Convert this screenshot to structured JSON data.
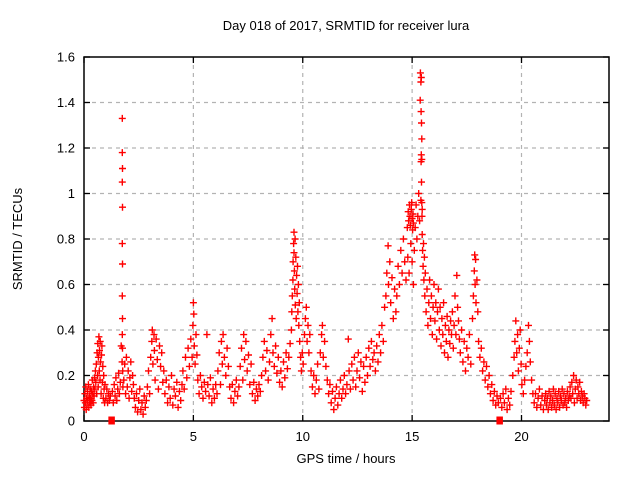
{
  "window": {
    "background": "#ffffff"
  },
  "chart_data": {
    "type": "scatter",
    "title": "Day 018 of 2017, SRMTID for receiver lura",
    "xlabel": "GPS time / hours",
    "ylabel": "SRMTID / TECUs",
    "xlim": [
      0,
      24
    ],
    "ylim": [
      0,
      1.6
    ],
    "xticks": [
      0,
      5,
      10,
      15,
      20
    ],
    "xtick_labels": [
      "0",
      "5",
      "10",
      "15",
      "20"
    ],
    "yticks": [
      0,
      0.2,
      0.4,
      0.6,
      0.8,
      1,
      1.2,
      1.4,
      1.6
    ],
    "ytick_labels": [
      "0",
      "0.2",
      "0.4",
      "0.6",
      "0.8",
      "1",
      "1.2",
      "1.4",
      "1.6"
    ],
    "grid": true,
    "grid_style": "dashed",
    "legend": "none",
    "marker": "plus-cross",
    "colors": {
      "points": "#ff0000",
      "grid": "#b3b3b3",
      "axis": "#000000",
      "background": "#ffffff",
      "text": "#000000"
    },
    "points_xy_flat": [
      0.0,
      0.09,
      0.02,
      0.06,
      0.04,
      0.12,
      0.06,
      0.08,
      0.08,
      0.15,
      0.1,
      0.05,
      0.12,
      0.1,
      0.14,
      0.07,
      0.16,
      0.13,
      0.18,
      0.09,
      0.2,
      0.16,
      0.22,
      0.06,
      0.24,
      0.11,
      0.26,
      0.08,
      0.28,
      0.14,
      0.3,
      0.1,
      0.32,
      0.07,
      0.34,
      0.13,
      0.36,
      0.09,
      0.38,
      0.18,
      0.4,
      0.12,
      0.42,
      0.08,
      0.44,
      0.15,
      0.46,
      0.11,
      0.48,
      0.19,
      0.5,
      0.14,
      0.52,
      0.22,
      0.54,
      0.17,
      0.56,
      0.25,
      0.58,
      0.12,
      0.6,
      0.3,
      0.62,
      0.2,
      0.63,
      0.34,
      0.65,
      0.15,
      0.66,
      0.28,
      0.68,
      0.37,
      0.7,
      0.22,
      0.71,
      0.31,
      0.73,
      0.18,
      0.74,
      0.35,
      0.76,
      0.26,
      0.78,
      0.12,
      0.8,
      0.29,
      0.82,
      0.33,
      0.84,
      0.17,
      0.86,
      0.24,
      0.88,
      0.1,
      0.9,
      0.2,
      0.92,
      0.14,
      0.94,
      0.08,
      0.96,
      0.16,
      1.0,
      0.1,
      1.04,
      0.14,
      1.08,
      0.08,
      1.12,
      0.12,
      1.16,
      0.09,
      1.2,
      0.11,
      1.3,
      0.13,
      1.34,
      0.08,
      1.38,
      0.16,
      1.42,
      0.11,
      1.46,
      0.19,
      1.5,
      0.09,
      1.54,
      0.14,
      1.58,
      0.21,
      1.62,
      0.12,
      1.66,
      0.17,
      1.7,
      0.33,
      1.74,
      0.26,
      1.75,
      1.33,
      1.75,
      1.18,
      1.76,
      1.11,
      1.75,
      1.05,
      1.76,
      0.94,
      1.75,
      0.78,
      1.76,
      0.69,
      1.75,
      0.55,
      1.76,
      0.45,
      1.75,
      0.38,
      1.76,
      0.32,
      1.77,
      0.22,
      1.78,
      0.15,
      1.82,
      0.18,
      1.86,
      0.25,
      1.9,
      0.12,
      1.94,
      0.28,
      1.98,
      0.15,
      2.02,
      0.22,
      2.06,
      0.1,
      2.1,
      0.19,
      2.14,
      0.26,
      2.18,
      0.13,
      2.22,
      0.2,
      2.26,
      0.16,
      2.3,
      0.1,
      2.35,
      0.06,
      2.4,
      0.12,
      2.45,
      0.04,
      2.5,
      0.09,
      2.55,
      0.14,
      2.6,
      0.05,
      2.65,
      0.08,
      2.7,
      0.03,
      2.75,
      0.11,
      2.8,
      0.06,
      2.85,
      0.09,
      2.9,
      0.15,
      2.95,
      0.22,
      3.0,
      0.12,
      3.05,
      0.28,
      3.1,
      0.35,
      3.12,
      0.4,
      3.15,
      0.25,
      3.2,
      0.38,
      3.22,
      0.31,
      3.25,
      0.18,
      3.3,
      0.36,
      3.35,
      0.27,
      3.4,
      0.14,
      3.45,
      0.33,
      3.5,
      0.24,
      3.55,
      0.3,
      3.6,
      0.17,
      3.65,
      0.22,
      3.7,
      0.12,
      3.76,
      0.18,
      3.82,
      0.08,
      3.88,
      0.15,
      3.94,
      0.1,
      4.0,
      0.2,
      4.06,
      0.07,
      4.12,
      0.14,
      4.18,
      0.11,
      4.24,
      0.17,
      4.3,
      0.06,
      4.36,
      0.13,
      4.42,
      0.09,
      4.48,
      0.16,
      4.52,
      0.22,
      4.58,
      0.14,
      4.64,
      0.28,
      4.7,
      0.19,
      4.76,
      0.32,
      4.82,
      0.24,
      4.88,
      0.36,
      4.94,
      0.28,
      4.98,
      0.42,
      5.0,
      0.52,
      5.02,
      0.47,
      5.04,
      0.33,
      5.08,
      0.25,
      5.12,
      0.38,
      5.16,
      0.29,
      5.2,
      0.18,
      5.26,
      0.12,
      5.32,
      0.2,
      5.38,
      0.15,
      5.44,
      0.1,
      5.5,
      0.17,
      5.56,
      0.13,
      5.62,
      0.38,
      5.66,
      0.16,
      5.72,
      0.11,
      5.78,
      0.19,
      5.84,
      0.08,
      5.9,
      0.14,
      5.96,
      0.1,
      6.02,
      0.16,
      6.08,
      0.12,
      6.12,
      0.22,
      6.18,
      0.3,
      6.24,
      0.16,
      6.28,
      0.35,
      6.32,
      0.25,
      6.36,
      0.38,
      6.42,
      0.28,
      6.48,
      0.2,
      6.54,
      0.32,
      6.6,
      0.24,
      6.66,
      0.15,
      6.72,
      0.1,
      6.78,
      0.16,
      6.84,
      0.08,
      6.9,
      0.13,
      6.96,
      0.18,
      7.02,
      0.11,
      7.08,
      0.15,
      7.14,
      0.24,
      7.2,
      0.32,
      7.26,
      0.18,
      7.3,
      0.38,
      7.34,
      0.27,
      7.4,
      0.35,
      7.46,
      0.22,
      7.52,
      0.29,
      7.58,
      0.16,
      7.64,
      0.25,
      7.7,
      0.12,
      7.76,
      0.17,
      7.82,
      0.09,
      7.88,
      0.14,
      7.94,
      0.11,
      8.0,
      0.16,
      8.06,
      0.13,
      8.12,
      0.2,
      8.18,
      0.28,
      8.24,
      0.35,
      8.3,
      0.22,
      8.36,
      0.31,
      8.42,
      0.18,
      8.48,
      0.26,
      8.54,
      0.38,
      8.6,
      0.45,
      8.64,
      0.3,
      8.7,
      0.24,
      8.76,
      0.33,
      8.82,
      0.21,
      8.88,
      0.28,
      8.94,
      0.17,
      9.0,
      0.22,
      9.06,
      0.15,
      9.12,
      0.26,
      9.18,
      0.19,
      9.24,
      0.3,
      9.3,
      0.23,
      9.36,
      0.28,
      9.42,
      0.34,
      9.48,
      0.4,
      9.5,
      0.48,
      9.52,
      0.55,
      9.55,
      0.62,
      9.56,
      0.7,
      9.58,
      0.78,
      9.6,
      0.83,
      9.6,
      0.74,
      9.62,
      0.66,
      9.63,
      0.58,
      9.65,
      0.8,
      9.66,
      0.51,
      9.68,
      0.72,
      9.7,
      0.45,
      9.72,
      0.64,
      9.74,
      0.56,
      9.76,
      0.68,
      9.78,
      0.48,
      9.8,
      0.6,
      9.82,
      0.42,
      9.84,
      0.52,
      9.86,
      0.35,
      9.9,
      0.28,
      9.94,
      0.22,
      9.98,
      0.3,
      10.02,
      0.25,
      10.08,
      0.38,
      10.12,
      0.45,
      10.16,
      0.5,
      10.2,
      0.35,
      10.24,
      0.42,
      10.28,
      0.3,
      10.32,
      0.38,
      10.38,
      0.22,
      10.44,
      0.15,
      10.5,
      0.2,
      10.56,
      0.12,
      10.62,
      0.18,
      10.68,
      0.25,
      10.74,
      0.14,
      10.8,
      0.3,
      10.86,
      0.38,
      10.9,
      0.42,
      10.94,
      0.28,
      11.0,
      0.35,
      11.06,
      0.24,
      11.12,
      0.18,
      11.18,
      0.12,
      11.24,
      0.16,
      11.3,
      0.08,
      11.36,
      0.13,
      11.42,
      0.05,
      11.48,
      0.1,
      11.54,
      0.15,
      11.6,
      0.07,
      11.66,
      0.12,
      11.72,
      0.18,
      11.78,
      0.1,
      11.84,
      0.14,
      11.9,
      0.2,
      11.96,
      0.12,
      12.02,
      0.16,
      12.08,
      0.36,
      12.12,
      0.22,
      12.18,
      0.14,
      12.24,
      0.25,
      12.3,
      0.18,
      12.36,
      0.28,
      12.42,
      0.15,
      12.48,
      0.22,
      12.54,
      0.3,
      12.6,
      0.19,
      12.66,
      0.26,
      12.72,
      0.13,
      12.78,
      0.24,
      12.84,
      0.17,
      12.9,
      0.28,
      12.96,
      0.2,
      13.02,
      0.32,
      13.08,
      0.24,
      13.14,
      0.35,
      13.2,
      0.27,
      13.26,
      0.3,
      13.32,
      0.22,
      13.38,
      0.33,
      13.44,
      0.26,
      13.5,
      0.38,
      13.56,
      0.3,
      13.62,
      0.42,
      13.68,
      0.35,
      13.74,
      0.5,
      13.8,
      0.55,
      13.84,
      0.65,
      13.9,
      0.77,
      13.92,
      0.6,
      13.98,
      0.7,
      14.02,
      0.52,
      14.08,
      0.63,
      14.14,
      0.45,
      14.2,
      0.58,
      14.26,
      0.48,
      14.3,
      0.55,
      14.36,
      0.68,
      14.42,
      0.6,
      14.48,
      0.75,
      14.54,
      0.65,
      14.6,
      0.8,
      14.66,
      0.7,
      14.72,
      0.62,
      14.78,
      0.85,
      14.8,
      0.72,
      14.82,
      0.92,
      14.84,
      0.88,
      14.86,
      0.65,
      14.88,
      0.95,
      14.9,
      0.9,
      14.92,
      0.86,
      14.94,
      0.78,
      14.96,
      0.93,
      14.98,
      0.96,
      15.0,
      0.89,
      15.0,
      0.7,
      15.02,
      0.84,
      15.04,
      0.91,
      15.06,
      0.87,
      15.06,
      0.6,
      15.1,
      0.75,
      15.14,
      0.85,
      15.18,
      0.95,
      15.22,
      0.8,
      15.26,
      0.9,
      15.3,
      1.0,
      15.34,
      0.88,
      15.37,
      1.41,
      15.38,
      1.53,
      15.4,
      1.49,
      15.41,
      1.36,
      15.42,
      1.51,
      15.43,
      1.31,
      15.44,
      1.24,
      15.42,
      1.17,
      15.44,
      1.15,
      15.41,
      1.14,
      15.43,
      1.05,
      15.4,
      0.97,
      15.44,
      0.96,
      15.46,
      0.93,
      15.45,
      0.9,
      15.46,
      0.82,
      15.48,
      0.75,
      15.5,
      0.68,
      15.52,
      0.78,
      15.54,
      0.62,
      15.56,
      0.72,
      15.58,
      0.55,
      15.6,
      0.65,
      15.64,
      0.48,
      15.68,
      0.58,
      15.72,
      0.42,
      15.76,
      0.52,
      15.8,
      0.62,
      15.84,
      0.45,
      15.88,
      0.55,
      15.92,
      0.38,
      15.96,
      0.5,
      16.0,
      0.6,
      16.04,
      0.44,
      16.08,
      0.52,
      16.12,
      0.36,
      16.16,
      0.48,
      16.2,
      0.58,
      16.24,
      0.4,
      16.28,
      0.5,
      16.32,
      0.33,
      16.36,
      0.45,
      16.4,
      0.38,
      16.44,
      0.52,
      16.48,
      0.3,
      16.52,
      0.42,
      16.56,
      0.35,
      16.6,
      0.46,
      16.64,
      0.28,
      16.68,
      0.4,
      16.72,
      0.34,
      16.76,
      0.44,
      16.8,
      0.38,
      16.84,
      0.48,
      16.88,
      0.32,
      16.92,
      0.42,
      16.96,
      0.55,
      17.0,
      0.38,
      17.04,
      0.64,
      17.08,
      0.5,
      17.12,
      0.44,
      17.16,
      0.36,
      17.2,
      0.3,
      17.26,
      0.4,
      17.32,
      0.26,
      17.38,
      0.35,
      17.44,
      0.22,
      17.5,
      0.32,
      17.56,
      0.28,
      17.62,
      0.38,
      17.68,
      0.25,
      17.76,
      0.45,
      17.8,
      0.55,
      17.84,
      0.66,
      17.86,
      0.73,
      17.88,
      0.6,
      17.9,
      0.71,
      17.92,
      0.52,
      17.96,
      0.62,
      18.0,
      0.48,
      18.04,
      0.35,
      18.1,
      0.28,
      18.16,
      0.32,
      18.22,
      0.22,
      18.28,
      0.26,
      18.34,
      0.18,
      18.4,
      0.24,
      18.46,
      0.15,
      18.52,
      0.2,
      18.58,
      0.12,
      18.64,
      0.16,
      18.7,
      0.09,
      18.76,
      0.13,
      18.82,
      0.07,
      18.88,
      0.11,
      18.94,
      0.08,
      19.04,
      0.1,
      19.1,
      0.06,
      19.16,
      0.12,
      19.22,
      0.08,
      19.28,
      0.14,
      19.34,
      0.05,
      19.4,
      0.1,
      19.46,
      0.07,
      19.52,
      0.13,
      19.6,
      0.2,
      19.66,
      0.28,
      19.7,
      0.35,
      19.74,
      0.44,
      19.78,
      0.3,
      19.82,
      0.38,
      19.86,
      0.22,
      19.9,
      0.32,
      19.94,
      0.4,
      19.98,
      0.25,
      20.02,
      0.16,
      20.08,
      0.12,
      20.14,
      0.18,
      20.2,
      0.24,
      20.26,
      0.3,
      20.32,
      0.42,
      20.36,
      0.35,
      20.4,
      0.26,
      20.46,
      0.18,
      20.52,
      0.12,
      20.58,
      0.08,
      20.64,
      0.12,
      20.7,
      0.06,
      20.76,
      0.1,
      20.82,
      0.14,
      20.88,
      0.07,
      20.94,
      0.11,
      21.0,
      0.05,
      21.06,
      0.09,
      21.1,
      0.12,
      21.14,
      0.07,
      21.18,
      0.1,
      21.22,
      0.05,
      21.26,
      0.13,
      21.3,
      0.08,
      21.34,
      0.11,
      21.38,
      0.06,
      21.42,
      0.09,
      21.46,
      0.14,
      21.5,
      0.07,
      21.54,
      0.12,
      21.58,
      0.05,
      21.62,
      0.1,
      21.66,
      0.08,
      21.7,
      0.13,
      21.74,
      0.06,
      21.78,
      0.11,
      21.82,
      0.09,
      21.86,
      0.14,
      21.9,
      0.07,
      21.94,
      0.12,
      21.98,
      0.08,
      22.02,
      0.1,
      22.06,
      0.06,
      22.1,
      0.13,
      22.14,
      0.09,
      22.18,
      0.11,
      22.22,
      0.15,
      22.26,
      0.1,
      22.3,
      0.17,
      22.34,
      0.12,
      22.38,
      0.2,
      22.42,
      0.08,
      22.46,
      0.14,
      22.5,
      0.18,
      22.54,
      0.1,
      22.58,
      0.15,
      22.62,
      0.12,
      22.66,
      0.17,
      22.7,
      0.09,
      22.74,
      0.13,
      22.78,
      0.11,
      22.82,
      0.08,
      22.86,
      0.12,
      22.9,
      0.1,
      22.94,
      0.07,
      22.98,
      0.09
    ],
    "zero_square_points": [
      [
        1.26,
        0.0
      ],
      [
        19.0,
        0.0
      ]
    ]
  }
}
